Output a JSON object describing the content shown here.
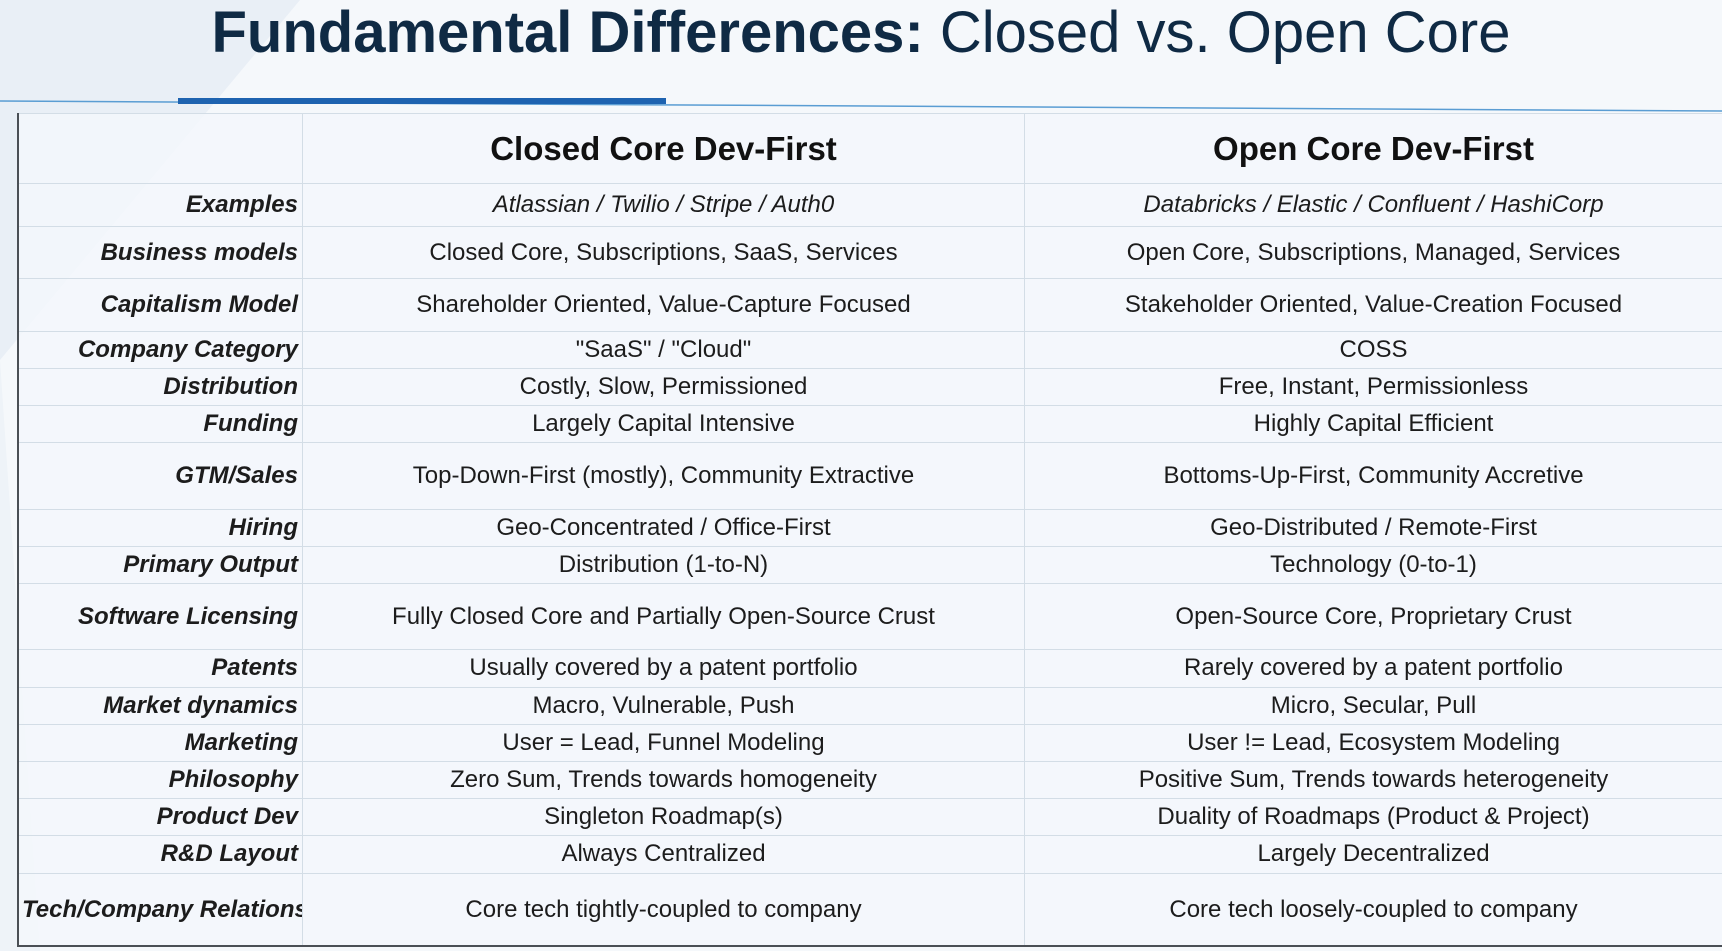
{
  "title": {
    "bold": "Fundamental Differences:",
    "light": "Closed vs. Open Core"
  },
  "columns": {
    "corner": "",
    "closed": "Closed Core Dev-First",
    "open": "Open Core Dev-First"
  },
  "rows": [
    {
      "label": "Examples",
      "closed": "Atlassian / Twilio / Stripe / Auth0",
      "open": "Databricks / Elastic / Confluent / HashiCorp"
    },
    {
      "label": "Business models",
      "closed": "Closed Core, Subscriptions, SaaS, Services",
      "open": "Open Core, Subscriptions, Managed, Services"
    },
    {
      "label": "Capitalism Model",
      "closed": "Shareholder Oriented, Value-Capture Focused",
      "open": "Stakeholder Oriented, Value-Creation Focused"
    },
    {
      "label": "Company Category",
      "closed": "\"SaaS\" / \"Cloud\"",
      "open": "COSS"
    },
    {
      "label": "Distribution",
      "closed": "Costly, Slow, Permissioned",
      "open": "Free, Instant, Permissionless"
    },
    {
      "label": "Funding",
      "closed": "Largely Capital Intensive",
      "open": "Highly Capital Efficient"
    },
    {
      "label": "GTM/Sales",
      "closed": "Top-Down-First (mostly), Community Extractive",
      "open": "Bottoms-Up-First, Community Accretive"
    },
    {
      "label": "Hiring",
      "closed": "Geo-Concentrated / Office-First",
      "open": "Geo-Distributed / Remote-First"
    },
    {
      "label": "Primary Output",
      "closed": "Distribution (1-to-N)",
      "open": "Technology (0-to-1)"
    },
    {
      "label": "Software Licensing",
      "closed": "Fully Closed Core and Partially Open-Source Crust",
      "open": "Open-Source Core, Proprietary Crust"
    },
    {
      "label": "Patents",
      "closed": "Usually covered by a patent portfolio",
      "open": "Rarely covered by a patent portfolio"
    },
    {
      "label": "Market dynamics",
      "closed": "Macro, Vulnerable, Push",
      "open": "Micro, Secular, Pull"
    },
    {
      "label": "Marketing",
      "closed": "User = Lead, Funnel Modeling",
      "open": "User != Lead, Ecosystem Modeling"
    },
    {
      "label": "Philosophy",
      "closed": "Zero Sum, Trends towards homogeneity",
      "open": "Positive Sum, Trends towards heterogeneity"
    },
    {
      "label": "Product Dev",
      "closed": "Singleton Roadmap(s)",
      "open": "Duality of Roadmaps (Product & Project)"
    },
    {
      "label": "R&D Layout",
      "closed": "Always Centralized",
      "open": "Largely Decentralized"
    },
    {
      "label": "Tech/Company Relationship",
      "closed": "Core tech tightly-coupled to company",
      "open": "Core tech loosely-coupled to company"
    }
  ],
  "colors": {
    "title": "#0f2a44",
    "accent": "#1e63b0",
    "line": "#4f97d0",
    "grid": "#d3dde6"
  }
}
